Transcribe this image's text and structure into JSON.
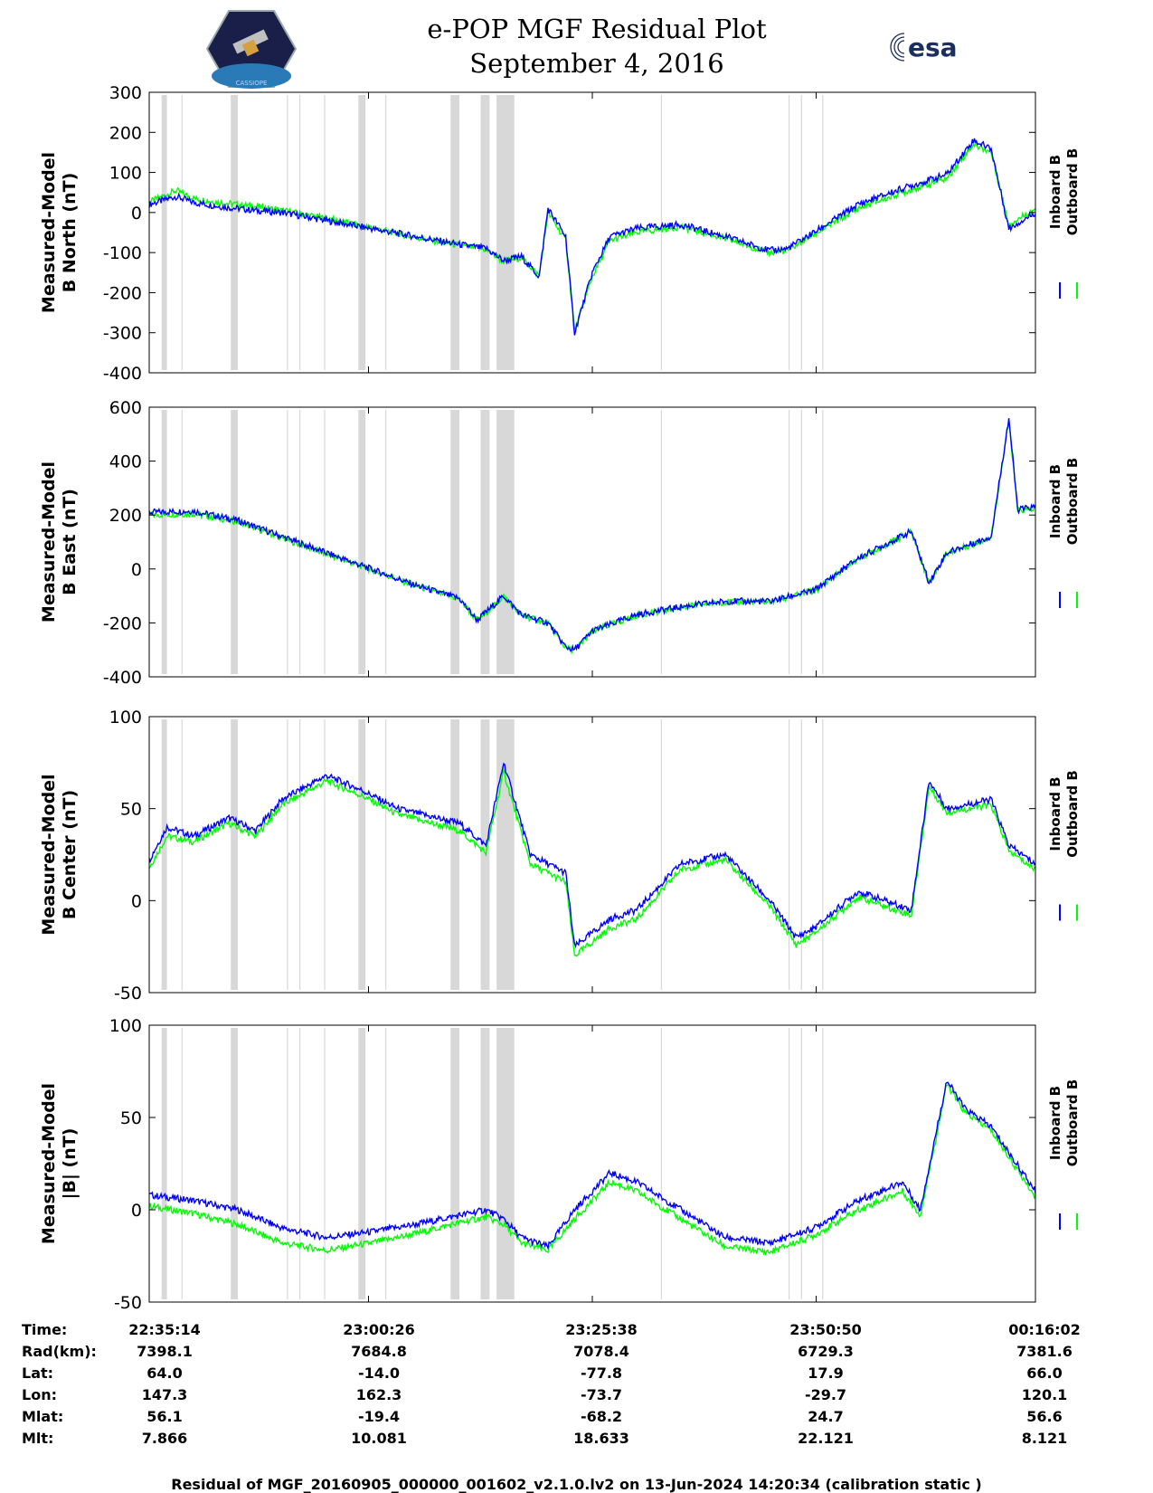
{
  "header": {
    "title": "e-POP MGF Residual Plot",
    "date": "September 4, 2016",
    "left_logo": "CASSIOPE",
    "right_logo": "esa"
  },
  "chart_data": [
    {
      "type": "line",
      "ylabel": [
        "Measured-Model",
        "B North (nT)"
      ],
      "ylim": [
        -400,
        300
      ],
      "yticks": [
        300,
        200,
        100,
        0,
        -100,
        -200,
        -300,
        -400
      ],
      "x": [
        0,
        3,
        5,
        8,
        12,
        15,
        20,
        25,
        30,
        35,
        38,
        40,
        42,
        44,
        45,
        47,
        48,
        50,
        52,
        55,
        60,
        65,
        70,
        72,
        75,
        80,
        85,
        90,
        93,
        95,
        97,
        100
      ],
      "series": [
        {
          "name": "Inboard B",
          "values": [
            20,
            40,
            25,
            15,
            5,
            0,
            -20,
            -40,
            -60,
            -80,
            -90,
            -120,
            -110,
            -160,
            10,
            -60,
            -300,
            -150,
            -60,
            -40,
            -30,
            -60,
            -95,
            -90,
            -50,
            20,
            60,
            95,
            180,
            160,
            -40,
            0
          ]
        },
        {
          "name": "Outboard B",
          "values": [
            25,
            55,
            35,
            25,
            15,
            5,
            -15,
            -38,
            -62,
            -82,
            -93,
            -122,
            -112,
            -158,
            0,
            -70,
            -295,
            -160,
            -70,
            -50,
            -35,
            -65,
            -100,
            -95,
            -55,
            10,
            50,
            85,
            170,
            150,
            -30,
            10
          ]
        }
      ]
    },
    {
      "type": "line",
      "ylabel": [
        "Measured-Model",
        "B East (nT)"
      ],
      "ylim": [
        -400,
        600
      ],
      "yticks": [
        600,
        400,
        200,
        0,
        -200,
        -400
      ],
      "x": [
        0,
        5,
        10,
        15,
        20,
        25,
        30,
        35,
        37,
        40,
        42,
        45,
        47,
        48,
        50,
        55,
        60,
        65,
        70,
        75,
        80,
        86,
        88,
        90,
        95,
        97,
        98,
        100
      ],
      "series": [
        {
          "name": "Inboard B",
          "values": [
            210,
            215,
            180,
            120,
            60,
            0,
            -60,
            -110,
            -190,
            -100,
            -170,
            -200,
            -290,
            -300,
            -230,
            -170,
            -140,
            -120,
            -120,
            -80,
            40,
            140,
            -50,
            60,
            120,
            560,
            220,
            230
          ]
        },
        {
          "name": "Outboard B",
          "values": [
            200,
            205,
            175,
            115,
            55,
            -2,
            -62,
            -112,
            -192,
            -102,
            -172,
            -202,
            -292,
            -302,
            -232,
            -172,
            -142,
            -122,
            -122,
            -82,
            38,
            138,
            -52,
            58,
            118,
            550,
            215,
            225
          ]
        }
      ]
    },
    {
      "type": "line",
      "ylabel": [
        "Measured-Model",
        "B Center (nT)"
      ],
      "ylim": [
        -50,
        100
      ],
      "yticks": [
        100,
        50,
        0,
        -50
      ],
      "x": [
        0,
        2,
        5,
        9,
        12,
        15,
        20,
        24,
        28,
        35,
        38,
        40,
        43,
        47,
        48,
        52,
        55,
        60,
        65,
        70,
        73,
        75,
        80,
        86,
        88,
        90,
        95,
        97,
        100
      ],
      "series": [
        {
          "name": "Inboard B",
          "values": [
            22,
            40,
            35,
            45,
            38,
            55,
            68,
            60,
            50,
            42,
            30,
            75,
            25,
            15,
            -25,
            -10,
            -5,
            20,
            25,
            0,
            -20,
            -15,
            5,
            -5,
            65,
            50,
            55,
            30,
            20
          ]
        },
        {
          "name": "Outboard B",
          "values": [
            18,
            35,
            32,
            42,
            35,
            52,
            65,
            57,
            47,
            38,
            26,
            70,
            20,
            10,
            -30,
            -15,
            -10,
            17,
            22,
            -3,
            -24,
            -18,
            2,
            -8,
            62,
            48,
            52,
            27,
            17
          ]
        }
      ]
    },
    {
      "type": "line",
      "ylabel": [
        "Measured-Model",
        "|B| (nT)"
      ],
      "ylim": [
        -50,
        100
      ],
      "yticks": [
        100,
        50,
        0,
        -50
      ],
      "x": [
        0,
        5,
        10,
        15,
        20,
        25,
        30,
        35,
        38,
        40,
        42,
        45,
        48,
        52,
        55,
        60,
        65,
        70,
        75,
        80,
        85,
        87,
        90,
        92,
        95,
        100
      ],
      "series": [
        {
          "name": "Inboard B",
          "values": [
            8,
            5,
            0,
            -10,
            -15,
            -12,
            -8,
            -3,
            0,
            -5,
            -15,
            -20,
            0,
            20,
            15,
            0,
            -15,
            -18,
            -10,
            5,
            15,
            0,
            70,
            55,
            45,
            10
          ]
        },
        {
          "name": "Outboard B",
          "values": [
            2,
            -2,
            -8,
            -18,
            -22,
            -18,
            -13,
            -7,
            -4,
            -8,
            -18,
            -22,
            -5,
            15,
            10,
            -5,
            -20,
            -23,
            -14,
            0,
            10,
            -3,
            68,
            53,
            43,
            7
          ]
        }
      ]
    }
  ],
  "legend": {
    "inboard": "Inboard B",
    "outboard": "Outboard B",
    "inboard_color": "#0000ff",
    "outboard_color": "#00ff00"
  },
  "shade_color": "#d8d8d8",
  "shaded_intervals": [
    [
      1.4,
      2.0
    ],
    [
      9.2,
      10.0
    ],
    [
      23.6,
      24.4
    ],
    [
      34.0,
      35.0
    ],
    [
      37.4,
      38.4
    ],
    [
      39.2,
      40.2
    ],
    [
      40.2,
      41.2
    ]
  ],
  "thin_lines": [
    3.7,
    15.6,
    17.0,
    19.8,
    26.7,
    57.8,
    72.2,
    73.6,
    76.0
  ],
  "ephemeris": {
    "labels": [
      "Time:",
      "Rad(km):",
      "Lat:",
      "Lon:",
      "Mlat:",
      "Mlt:"
    ],
    "columns": [
      [
        "22:35:14",
        "7398.1",
        "64.0",
        "147.3",
        "56.1",
        "7.866"
      ],
      [
        "23:00:26",
        "7684.8",
        "-14.0",
        "162.3",
        "-19.4",
        "10.081"
      ],
      [
        "23:25:38",
        "7078.4",
        "-77.8",
        "-73.7",
        "-68.2",
        "18.633"
      ],
      [
        "23:50:50",
        "6729.3",
        "17.9",
        "-29.7",
        "24.7",
        "22.121"
      ],
      [
        "00:16:02",
        "7381.6",
        "66.0",
        "120.1",
        "56.6",
        "8.121"
      ]
    ]
  },
  "footer": "Residual of MGF_20160905_000000_001602_v2.1.0.lv2 on 13-Jun-2024 14:20:34 (calibration static )"
}
